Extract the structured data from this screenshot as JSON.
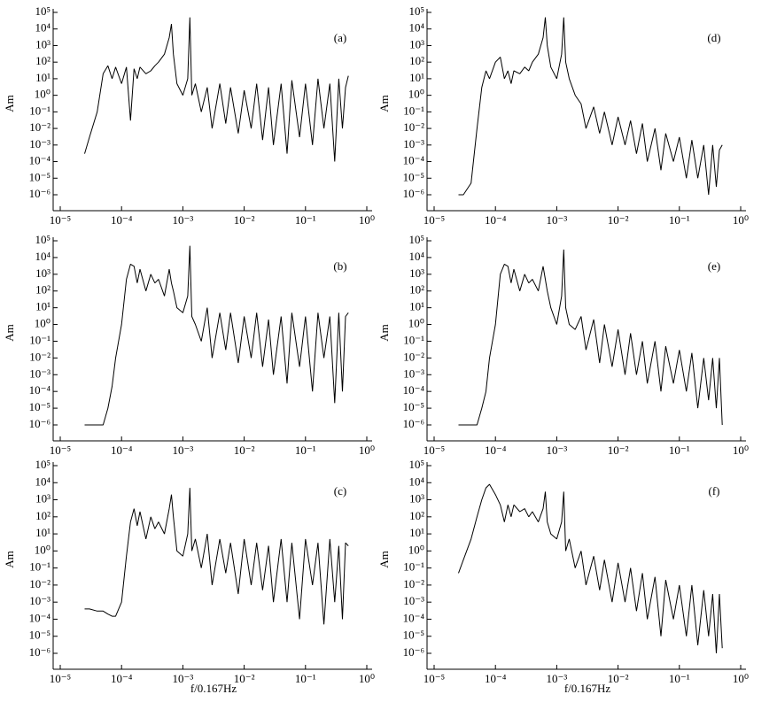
{
  "chart_data": [
    {
      "type": "line",
      "annotation": "(a)",
      "y_label": "Am",
      "xscale": "log",
      "yscale": "log",
      "color": "#000000",
      "x": [
        2.5e-05,
        3e-05,
        4e-05,
        5e-05,
        6e-05,
        7e-05,
        8e-05,
        0.0001,
        0.00012,
        0.00014,
        0.00016,
        0.00018,
        0.0002,
        0.00025,
        0.0003,
        0.00035,
        0.0004,
        0.0005,
        0.0006,
        0.00065,
        0.0007,
        0.0008,
        0.001,
        0.0012,
        0.0013,
        0.0014,
        0.0016,
        0.002,
        0.0025,
        0.003,
        0.004,
        0.005,
        0.006,
        0.008,
        0.01,
        0.013,
        0.016,
        0.02,
        0.025,
        0.03,
        0.04,
        0.05,
        0.06,
        0.08,
        0.1,
        0.13,
        0.16,
        0.2,
        0.25,
        0.3,
        0.35,
        0.4,
        0.45,
        0.5
      ],
      "values": [
        0.0003,
        0.003,
        0.1,
        20,
        60,
        10,
        50,
        5,
        50,
        0.03,
        40,
        10,
        50,
        20,
        30,
        60,
        100,
        300,
        3000,
        20000.0,
        300,
        5,
        1,
        10,
        50000.0,
        1,
        5,
        0.1,
        3,
        0.01,
        5,
        0.02,
        3,
        0.005,
        2,
        0.01,
        5,
        0.002,
        3,
        0.001,
        5,
        0.0003,
        8,
        0.003,
        5,
        0.001,
        10,
        0.01,
        5,
        0.0001,
        10,
        0.01,
        3,
        15
      ],
      "xlim": [
        1e-05,
        1
      ],
      "ylim": [
        1e-06,
        100000.0
      ],
      "xticks": [
        {
          "value": 1e-05,
          "label": "10⁻⁵"
        },
        {
          "value": 0.0001,
          "label": "10⁻⁴"
        },
        {
          "value": 0.001,
          "label": "10⁻³"
        },
        {
          "value": 0.01,
          "label": "10⁻²"
        },
        {
          "value": 0.1,
          "label": "10⁻¹"
        },
        {
          "value": 1,
          "label": "10⁰"
        }
      ],
      "yticks": [
        {
          "value": 1e-06,
          "label": "10⁻⁶"
        },
        {
          "value": 1e-05,
          "label": "10⁻⁵"
        },
        {
          "value": 0.0001,
          "label": "10⁻⁴"
        },
        {
          "value": 0.001,
          "label": "10⁻³"
        },
        {
          "value": 0.01,
          "label": "10⁻²"
        },
        {
          "value": 0.1,
          "label": "10⁻¹"
        },
        {
          "value": 1,
          "label": "10⁰"
        },
        {
          "value": 10,
          "label": "10¹"
        },
        {
          "value": 100,
          "label": "10²"
        },
        {
          "value": 1000,
          "label": "10³"
        },
        {
          "value": 10000.0,
          "label": "10⁴"
        },
        {
          "value": 100000.0,
          "label": "10⁵"
        }
      ]
    },
    {
      "type": "line",
      "annotation": "(b)",
      "y_label": "Am",
      "xscale": "log",
      "yscale": "log",
      "color": "#000000",
      "x": [
        2.5e-05,
        3e-05,
        4e-05,
        5e-05,
        6e-05,
        7e-05,
        8e-05,
        0.0001,
        0.00012,
        0.00014,
        0.00016,
        0.00018,
        0.0002,
        0.00025,
        0.0003,
        0.00035,
        0.0004,
        0.0005,
        0.0006,
        0.00065,
        0.0007,
        0.0008,
        0.001,
        0.0012,
        0.0013,
        0.0014,
        0.0016,
        0.002,
        0.0025,
        0.003,
        0.004,
        0.005,
        0.006,
        0.008,
        0.01,
        0.013,
        0.016,
        0.02,
        0.025,
        0.03,
        0.04,
        0.05,
        0.06,
        0.08,
        0.1,
        0.13,
        0.16,
        0.2,
        0.25,
        0.3,
        0.35,
        0.4,
        0.45,
        0.5
      ],
      "values": [
        1e-06,
        1e-06,
        1e-06,
        1e-06,
        1e-05,
        0.0002,
        0.01,
        1,
        500,
        4000,
        3000,
        300,
        2000,
        100,
        1000,
        300,
        500,
        50,
        2000,
        300,
        100,
        10,
        5,
        50,
        50000.0,
        3,
        1,
        0.1,
        10,
        0.01,
        5,
        0.03,
        5,
        0.005,
        3,
        0.01,
        5,
        0.003,
        2,
        0.001,
        3,
        0.0003,
        5,
        0.003,
        3,
        0.0001,
        5,
        0.01,
        3,
        2e-05,
        5,
        0.0001,
        3,
        5
      ],
      "xlim": [
        1e-05,
        1
      ],
      "ylim": [
        1e-06,
        100000.0
      ],
      "xticks": [
        {
          "value": 1e-05,
          "label": "10⁻⁵"
        },
        {
          "value": 0.0001,
          "label": "10⁻⁴"
        },
        {
          "value": 0.001,
          "label": "10⁻³"
        },
        {
          "value": 0.01,
          "label": "10⁻²"
        },
        {
          "value": 0.1,
          "label": "10⁻¹"
        },
        {
          "value": 1,
          "label": "10⁰"
        }
      ],
      "yticks": [
        {
          "value": 1e-06,
          "label": "10⁻⁶"
        },
        {
          "value": 1e-05,
          "label": "10⁻⁵"
        },
        {
          "value": 0.0001,
          "label": "10⁻⁴"
        },
        {
          "value": 0.001,
          "label": "10⁻³"
        },
        {
          "value": 0.01,
          "label": "10⁻²"
        },
        {
          "value": 0.1,
          "label": "10⁻¹"
        },
        {
          "value": 1,
          "label": "10⁰"
        },
        {
          "value": 10,
          "label": "10¹"
        },
        {
          "value": 100,
          "label": "10²"
        },
        {
          "value": 1000,
          "label": "10³"
        },
        {
          "value": 10000.0,
          "label": "10⁴"
        },
        {
          "value": 100000.0,
          "label": "10⁵"
        }
      ]
    },
    {
      "type": "line",
      "annotation": "(c)",
      "y_label": "Am",
      "x_label": "f/0.167Hz",
      "xscale": "log",
      "yscale": "log",
      "color": "#000000",
      "x": [
        2.5e-05,
        3e-05,
        4e-05,
        5e-05,
        6e-05,
        7e-05,
        8e-05,
        0.0001,
        0.00012,
        0.00014,
        0.00016,
        0.00018,
        0.0002,
        0.00025,
        0.0003,
        0.00035,
        0.0004,
        0.0005,
        0.0006,
        0.00065,
        0.0007,
        0.0008,
        0.001,
        0.0012,
        0.0013,
        0.0014,
        0.0016,
        0.002,
        0.0025,
        0.003,
        0.004,
        0.005,
        0.006,
        0.008,
        0.01,
        0.013,
        0.016,
        0.02,
        0.025,
        0.03,
        0.04,
        0.05,
        0.06,
        0.08,
        0.1,
        0.13,
        0.16,
        0.2,
        0.25,
        0.3,
        0.35,
        0.4,
        0.45,
        0.5
      ],
      "values": [
        0.0004,
        0.0004,
        0.0003,
        0.0003,
        0.0002,
        0.00015,
        0.00015,
        0.001,
        0.5,
        50,
        300,
        30,
        200,
        5,
        100,
        20,
        50,
        10,
        300,
        2000,
        100,
        1,
        0.5,
        10,
        5000,
        1,
        5,
        0.1,
        10,
        0.01,
        5,
        0.05,
        3,
        0.003,
        5,
        0.01,
        3,
        0.005,
        2,
        0.001,
        5,
        0.001,
        3,
        0.0001,
        5,
        0.01,
        3,
        5e-05,
        5,
        0.001,
        2,
        0.0001,
        3,
        2
      ],
      "xlim": [
        1e-05,
        1
      ],
      "ylim": [
        1e-06,
        100000.0
      ],
      "xticks": [
        {
          "value": 1e-05,
          "label": "10⁻⁵"
        },
        {
          "value": 0.0001,
          "label": "10⁻⁴"
        },
        {
          "value": 0.001,
          "label": "10⁻³"
        },
        {
          "value": 0.01,
          "label": "10⁻²"
        },
        {
          "value": 0.1,
          "label": "10⁻¹"
        },
        {
          "value": 1,
          "label": "10⁰"
        }
      ],
      "yticks": [
        {
          "value": 1e-06,
          "label": "10⁻⁶"
        },
        {
          "value": 1e-05,
          "label": "10⁻⁵"
        },
        {
          "value": 0.0001,
          "label": "10⁻⁴"
        },
        {
          "value": 0.001,
          "label": "10⁻³"
        },
        {
          "value": 0.01,
          "label": "10⁻²"
        },
        {
          "value": 0.1,
          "label": "10⁻¹"
        },
        {
          "value": 1,
          "label": "10⁰"
        },
        {
          "value": 10,
          "label": "10¹"
        },
        {
          "value": 100,
          "label": "10²"
        },
        {
          "value": 1000,
          "label": "10³"
        },
        {
          "value": 10000.0,
          "label": "10⁴"
        },
        {
          "value": 100000.0,
          "label": "10⁵"
        }
      ]
    },
    {
      "type": "line",
      "annotation": "(d)",
      "y_label": "Am",
      "xscale": "log",
      "yscale": "log",
      "color": "#000000",
      "x": [
        2.5e-05,
        3e-05,
        4e-05,
        5e-05,
        6e-05,
        7e-05,
        8e-05,
        0.0001,
        0.00012,
        0.00014,
        0.00016,
        0.00018,
        0.0002,
        0.00025,
        0.0003,
        0.00035,
        0.0004,
        0.0005,
        0.0006,
        0.00065,
        0.0007,
        0.0008,
        0.001,
        0.0012,
        0.0013,
        0.0014,
        0.0016,
        0.002,
        0.0025,
        0.003,
        0.004,
        0.005,
        0.006,
        0.008,
        0.01,
        0.013,
        0.016,
        0.02,
        0.025,
        0.03,
        0.04,
        0.05,
        0.06,
        0.08,
        0.1,
        0.13,
        0.16,
        0.2,
        0.25,
        0.3,
        0.35,
        0.4,
        0.45,
        0.5
      ],
      "values": [
        1e-06,
        1e-06,
        5e-06,
        0.01,
        3,
        30,
        10,
        100,
        200,
        10,
        30,
        5,
        30,
        20,
        50,
        30,
        100,
        300,
        3000,
        50000.0,
        1000,
        50,
        10,
        300,
        50000.0,
        100,
        10,
        1,
        0.3,
        0.01,
        0.2,
        0.005,
        0.1,
        0.001,
        0.05,
        0.001,
        0.03,
        0.0003,
        0.02,
        0.0001,
        0.01,
        3e-05,
        0.005,
        0.0001,
        0.003,
        1e-05,
        0.002,
        1e-05,
        0.001,
        1e-06,
        0.001,
        3e-06,
        0.0005,
        0.001
      ],
      "xlim": [
        1e-05,
        1
      ],
      "ylim": [
        1e-06,
        100000.0
      ],
      "xticks": [
        {
          "value": 1e-05,
          "label": "10⁻⁵"
        },
        {
          "value": 0.0001,
          "label": "10⁻⁴"
        },
        {
          "value": 0.001,
          "label": "10⁻³"
        },
        {
          "value": 0.01,
          "label": "10⁻²"
        },
        {
          "value": 0.1,
          "label": "10⁻¹"
        },
        {
          "value": 1,
          "label": "10⁰"
        }
      ],
      "yticks": [
        {
          "value": 1e-06,
          "label": "10⁻⁶"
        },
        {
          "value": 1e-05,
          "label": "10⁻⁵"
        },
        {
          "value": 0.0001,
          "label": "10⁻⁴"
        },
        {
          "value": 0.001,
          "label": "10⁻³"
        },
        {
          "value": 0.01,
          "label": "10⁻²"
        },
        {
          "value": 0.1,
          "label": "10⁻¹"
        },
        {
          "value": 1,
          "label": "10⁰"
        },
        {
          "value": 10,
          "label": "10¹"
        },
        {
          "value": 100,
          "label": "10²"
        },
        {
          "value": 1000,
          "label": "10³"
        },
        {
          "value": 10000.0,
          "label": "10⁴"
        },
        {
          "value": 100000.0,
          "label": "10⁵"
        }
      ]
    },
    {
      "type": "line",
      "annotation": "(e)",
      "y_label": "Am",
      "xscale": "log",
      "yscale": "log",
      "color": "#000000",
      "x": [
        2.5e-05,
        3e-05,
        4e-05,
        5e-05,
        6e-05,
        7e-05,
        8e-05,
        0.0001,
        0.00012,
        0.00014,
        0.00016,
        0.00018,
        0.0002,
        0.00025,
        0.0003,
        0.00035,
        0.0004,
        0.0005,
        0.0006,
        0.00065,
        0.0007,
        0.0008,
        0.001,
        0.0012,
        0.0013,
        0.0014,
        0.0016,
        0.002,
        0.0025,
        0.003,
        0.004,
        0.005,
        0.006,
        0.008,
        0.01,
        0.013,
        0.016,
        0.02,
        0.025,
        0.03,
        0.04,
        0.05,
        0.06,
        0.08,
        0.1,
        0.13,
        0.16,
        0.2,
        0.25,
        0.3,
        0.35,
        0.4,
        0.45,
        0.5
      ],
      "values": [
        1e-06,
        1e-06,
        1e-06,
        1e-06,
        1e-05,
        0.0001,
        0.01,
        1,
        1000,
        4000,
        3000,
        300,
        2000,
        100,
        1000,
        300,
        500,
        100,
        3000,
        500,
        100,
        10,
        1,
        50,
        30000.0,
        10,
        1,
        0.5,
        3,
        0.03,
        2,
        0.005,
        1,
        0.003,
        0.5,
        0.001,
        0.3,
        0.001,
        0.1,
        0.0003,
        0.1,
        0.0001,
        0.05,
        0.0003,
        0.03,
        0.0001,
        0.02,
        1e-05,
        0.01,
        3e-05,
        0.01,
        1e-05,
        0.01,
        1e-06
      ],
      "xlim": [
        1e-05,
        1
      ],
      "ylim": [
        1e-06,
        100000.0
      ],
      "xticks": [
        {
          "value": 1e-05,
          "label": "10⁻⁵"
        },
        {
          "value": 0.0001,
          "label": "10⁻⁴"
        },
        {
          "value": 0.001,
          "label": "10⁻³"
        },
        {
          "value": 0.01,
          "label": "10⁻²"
        },
        {
          "value": 0.1,
          "label": "10⁻¹"
        },
        {
          "value": 1,
          "label": "10⁰"
        }
      ],
      "yticks": [
        {
          "value": 1e-06,
          "label": "10⁻⁶"
        },
        {
          "value": 1e-05,
          "label": "10⁻⁵"
        },
        {
          "value": 0.0001,
          "label": "10⁻⁴"
        },
        {
          "value": 0.001,
          "label": "10⁻³"
        },
        {
          "value": 0.01,
          "label": "10⁻²"
        },
        {
          "value": 0.1,
          "label": "10⁻¹"
        },
        {
          "value": 1,
          "label": "10⁰"
        },
        {
          "value": 10,
          "label": "10¹"
        },
        {
          "value": 100,
          "label": "10²"
        },
        {
          "value": 1000,
          "label": "10³"
        },
        {
          "value": 10000.0,
          "label": "10⁴"
        },
        {
          "value": 100000.0,
          "label": "10⁵"
        }
      ]
    },
    {
      "type": "line",
      "annotation": "(f)",
      "y_label": "Am",
      "x_label": "f/0.167Hz",
      "xscale": "log",
      "yscale": "log",
      "color": "#000000",
      "x": [
        2.5e-05,
        3e-05,
        4e-05,
        5e-05,
        6e-05,
        7e-05,
        8e-05,
        0.0001,
        0.00012,
        0.00014,
        0.00016,
        0.00018,
        0.0002,
        0.00025,
        0.0003,
        0.00035,
        0.0004,
        0.0005,
        0.0006,
        0.00065,
        0.0007,
        0.0008,
        0.001,
        0.0012,
        0.0013,
        0.0014,
        0.0016,
        0.002,
        0.0025,
        0.003,
        0.004,
        0.005,
        0.006,
        0.008,
        0.01,
        0.013,
        0.016,
        0.02,
        0.025,
        0.03,
        0.04,
        0.05,
        0.06,
        0.08,
        0.1,
        0.13,
        0.16,
        0.2,
        0.25,
        0.3,
        0.35,
        0.4,
        0.45,
        0.5
      ],
      "values": [
        0.05,
        0.3,
        5,
        100,
        1000,
        5000,
        8000,
        2000,
        500,
        50,
        500,
        100,
        500,
        200,
        300,
        100,
        200,
        50,
        300,
        3000,
        50,
        10,
        5,
        50,
        3000,
        1,
        5,
        0.1,
        1,
        0.01,
        0.5,
        0.005,
        0.3,
        0.001,
        0.2,
        0.001,
        0.1,
        0.0003,
        0.05,
        0.0001,
        0.03,
        1e-05,
        0.02,
        0.0001,
        0.01,
        1e-05,
        0.01,
        3e-06,
        0.005,
        1e-05,
        0.003,
        1e-06,
        0.003,
        2e-06
      ],
      "xlim": [
        1e-05,
        1
      ],
      "ylim": [
        1e-06,
        100000.0
      ],
      "xticks": [
        {
          "value": 1e-05,
          "label": "10⁻⁵"
        },
        {
          "value": 0.0001,
          "label": "10⁻⁴"
        },
        {
          "value": 0.001,
          "label": "10⁻³"
        },
        {
          "value": 0.01,
          "label": "10⁻²"
        },
        {
          "value": 0.1,
          "label": "10⁻¹"
        },
        {
          "value": 1,
          "label": "10⁰"
        }
      ],
      "yticks": [
        {
          "value": 1e-06,
          "label": "10⁻⁶"
        },
        {
          "value": 1e-05,
          "label": "10⁻⁵"
        },
        {
          "value": 0.0001,
          "label": "10⁻⁴"
        },
        {
          "value": 0.001,
          "label": "10⁻³"
        },
        {
          "value": 0.01,
          "label": "10⁻²"
        },
        {
          "value": 0.1,
          "label": "10⁻¹"
        },
        {
          "value": 1,
          "label": "10⁰"
        },
        {
          "value": 10,
          "label": "10¹"
        },
        {
          "value": 100,
          "label": "10²"
        },
        {
          "value": 1000,
          "label": "10³"
        },
        {
          "value": 10000.0,
          "label": "10⁴"
        },
        {
          "value": 100000.0,
          "label": "10⁵"
        }
      ]
    }
  ]
}
